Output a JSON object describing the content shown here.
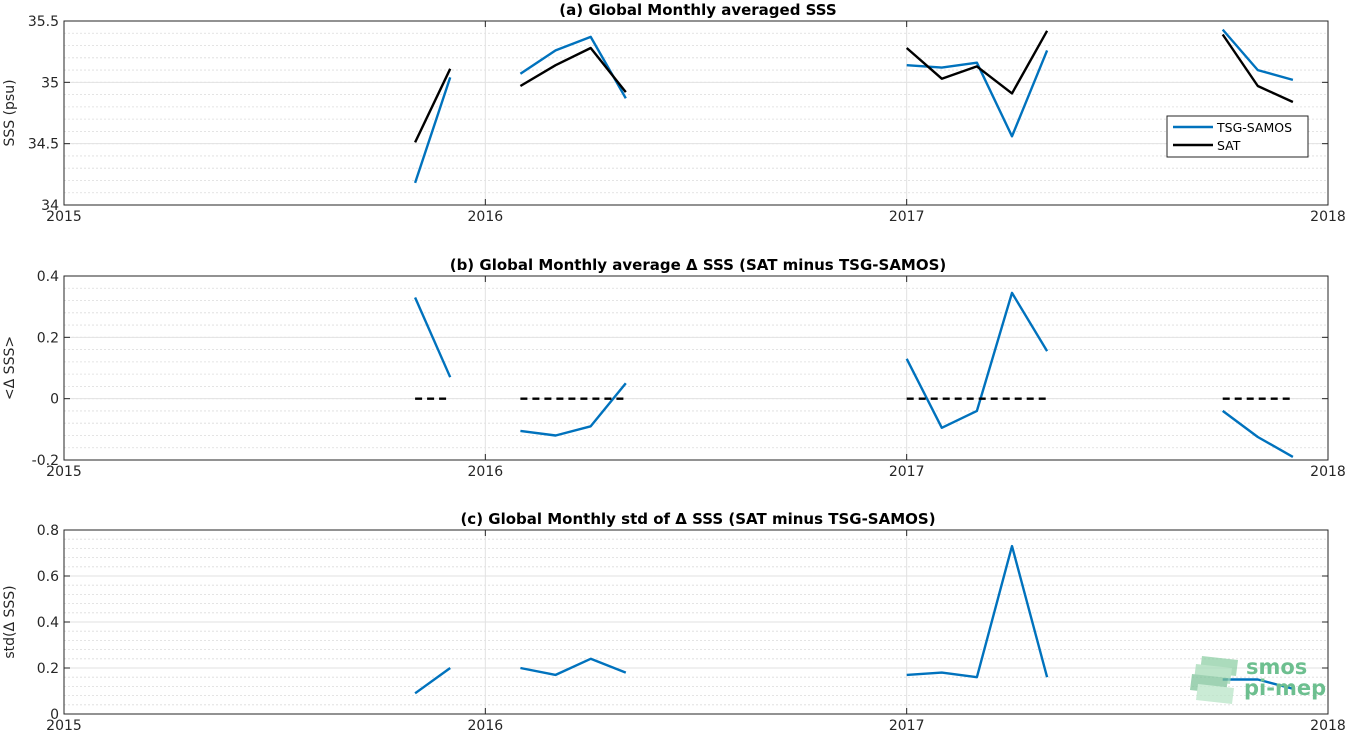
{
  "chart_data": [
    {
      "type": "line",
      "title": "(a) Global Monthly averaged SSS",
      "xlabel": "",
      "ylabel": "SSS (psu)",
      "xlim": [
        "2015",
        "2018"
      ],
      "x_ticks": [
        "2015",
        "2016",
        "2017",
        "2018"
      ],
      "ylim": [
        34,
        35.5
      ],
      "y_ticks": [
        "34",
        "34.5",
        "35",
        "35.5"
      ],
      "grid": true,
      "legend_position": "right",
      "series": [
        {
          "name": "TSG-SAMOS",
          "color": "#0072bd",
          "segments": [
            [
              [
                "2015-11",
                34.18
              ],
              [
                "2015-12",
                35.04
              ]
            ],
            [
              [
                "2016-02",
                35.07
              ],
              [
                "2016-03",
                35.26
              ],
              [
                "2016-04",
                35.37
              ],
              [
                "2016-05",
                34.87
              ]
            ],
            [
              [
                "2017-01",
                35.14
              ],
              [
                "2017-02",
                35.12
              ],
              [
                "2017-03",
                35.16
              ],
              [
                "2017-04",
                34.56
              ],
              [
                "2017-05",
                35.26
              ]
            ],
            [
              [
                "2017-10",
                35.43
              ],
              [
                "2017-11",
                35.1
              ],
              [
                "2017-12",
                35.02
              ]
            ]
          ]
        },
        {
          "name": "SAT",
          "color": "#000000",
          "segments": [
            [
              [
                "2015-11",
                34.51
              ],
              [
                "2015-12",
                35.11
              ]
            ],
            [
              [
                "2016-02",
                34.97
              ],
              [
                "2016-03",
                35.14
              ],
              [
                "2016-04",
                35.28
              ],
              [
                "2016-05",
                34.92
              ]
            ],
            [
              [
                "2017-01",
                35.28
              ],
              [
                "2017-02",
                35.03
              ],
              [
                "2017-03",
                35.13
              ],
              [
                "2017-04",
                34.91
              ],
              [
                "2017-05",
                35.42
              ]
            ],
            [
              [
                "2017-10",
                35.39
              ],
              [
                "2017-11",
                34.97
              ],
              [
                "2017-12",
                34.84
              ]
            ]
          ]
        }
      ]
    },
    {
      "type": "line",
      "title": "(b) Global Monthly average Δ SSS (SAT minus TSG-SAMOS)",
      "xlabel": "",
      "ylabel": "<Δ SSS>",
      "xlim": [
        "2015",
        "2018"
      ],
      "x_ticks": [
        "2015",
        "2016",
        "2017",
        "2018"
      ],
      "ylim": [
        -0.2,
        0.4
      ],
      "y_ticks": [
        "-0.2",
        "0",
        "0.2",
        "0.4"
      ],
      "grid": true,
      "series": [
        {
          "color": "#0072bd",
          "segments": [
            [
              [
                "2015-11",
                0.33
              ],
              [
                "2015-12",
                0.07
              ]
            ],
            [
              [
                "2016-02",
                -0.105
              ],
              [
                "2016-03",
                -0.12
              ],
              [
                "2016-04",
                -0.09
              ],
              [
                "2016-05",
                0.05
              ]
            ],
            [
              [
                "2017-01",
                0.13
              ],
              [
                "2017-02",
                -0.095
              ],
              [
                "2017-03",
                -0.04
              ],
              [
                "2017-04",
                0.345
              ],
              [
                "2017-05",
                0.155
              ]
            ],
            [
              [
                "2017-10",
                -0.04
              ],
              [
                "2017-11",
                -0.125
              ],
              [
                "2017-12",
                -0.19
              ]
            ]
          ]
        },
        {
          "color": "#000000",
          "dashed": true,
          "segments": [
            [
              [
                "2015-11",
                0
              ],
              [
                "2015-12",
                0
              ]
            ],
            [
              [
                "2016-02",
                0
              ],
              [
                "2016-05",
                0
              ]
            ],
            [
              [
                "2017-01",
                0
              ],
              [
                "2017-05",
                0
              ]
            ],
            [
              [
                "2017-10",
                0
              ],
              [
                "2017-12",
                0
              ]
            ]
          ]
        }
      ]
    },
    {
      "type": "line",
      "title": "(c) Global Monthly std of Δ SSS (SAT minus TSG-SAMOS)",
      "xlabel": "",
      "ylabel": "std(Δ SSS)",
      "xlim": [
        "2015",
        "2018"
      ],
      "x_ticks": [
        "2015",
        "2016",
        "2017",
        "2018"
      ],
      "ylim": [
        0,
        0.8
      ],
      "y_ticks": [
        "0",
        "0.2",
        "0.4",
        "0.6",
        "0.8"
      ],
      "grid": true,
      "series": [
        {
          "color": "#0072bd",
          "segments": [
            [
              [
                "2015-11",
                0.09
              ],
              [
                "2015-12",
                0.2
              ]
            ],
            [
              [
                "2016-02",
                0.2
              ],
              [
                "2016-03",
                0.17
              ],
              [
                "2016-04",
                0.24
              ],
              [
                "2016-05",
                0.18
              ]
            ],
            [
              [
                "2017-01",
                0.17
              ],
              [
                "2017-02",
                0.18
              ],
              [
                "2017-03",
                0.16
              ],
              [
                "2017-04",
                0.73
              ],
              [
                "2017-05",
                0.16
              ]
            ],
            [
              [
                "2017-10",
                0.15
              ],
              [
                "2017-11",
                0.15
              ],
              [
                "2017-12",
                0.11
              ]
            ]
          ]
        }
      ]
    }
  ],
  "logo": {
    "line1": "smos",
    "line2": "pi-mep",
    "icon": "smos-pimep-logo-icon"
  }
}
